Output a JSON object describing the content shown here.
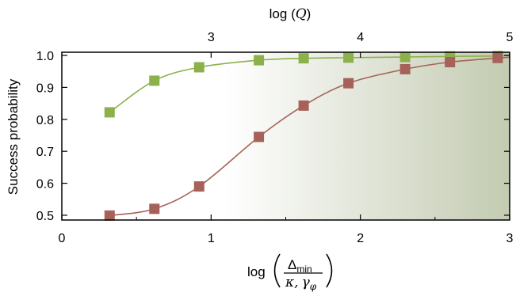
{
  "chart_data": {
    "type": "line",
    "title": "",
    "ylabel": "Success probability",
    "xlabel": {
      "prefix": "log",
      "numerator": "Δ",
      "numerator_sub": "min",
      "denominator_a": "κ,",
      "denominator_b": "γ",
      "denominator_sub": "φ"
    },
    "top_xlabel": {
      "prefix": "log (",
      "var": "Q",
      "suffix": ")"
    },
    "xlim": [
      0,
      3
    ],
    "ylim": [
      0.485,
      1.01
    ],
    "top_xlim": [
      2,
      5
    ],
    "x_ticks": [
      "0",
      "1",
      "2",
      "3"
    ],
    "y_ticks": [
      "0.5",
      "0.6",
      "0.7",
      "0.8",
      "0.9",
      "1.0"
    ],
    "top_ticks": [
      "3",
      "4",
      "5"
    ],
    "grid": false,
    "background_gradient": {
      "from_x": 1.1,
      "to_x": 3.0,
      "color_start": "#ffffff",
      "color_end": "#c3cbb1"
    },
    "series": [
      {
        "color": "#8db14a",
        "marker": "square",
        "x": [
          0.32,
          0.62,
          0.92,
          1.32,
          1.62,
          1.92,
          2.3,
          2.6,
          2.92
        ],
        "y": [
          0.822,
          0.921,
          0.963,
          0.985,
          0.991,
          0.993,
          0.995,
          0.997,
          0.998
        ]
      },
      {
        "color": "#a6625a",
        "marker": "square",
        "x": [
          0.32,
          0.62,
          0.92,
          1.32,
          1.62,
          1.92,
          2.3,
          2.6,
          2.92
        ],
        "y": [
          0.499,
          0.52,
          0.59,
          0.745,
          0.843,
          0.913,
          0.957,
          0.979,
          0.992
        ]
      }
    ]
  }
}
